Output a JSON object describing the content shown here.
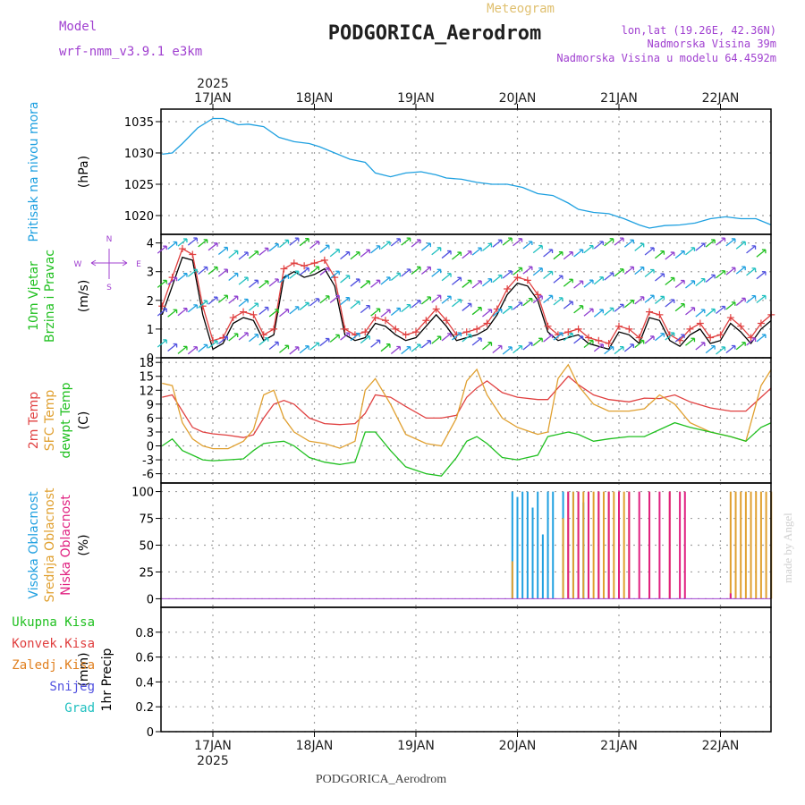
{
  "header": {
    "model_label": "Model",
    "model_name": "wrf-nmm_v3.9.1 e3km",
    "meteogram_label": "Meteogram",
    "station": "PODGORICA_Aerodrom",
    "lonlat": "lon,lat (19.26E, 42.36N)",
    "altitude": "Nadmorska Visina 39m",
    "model_altitude": "Nadmorska Visina u modelu 64.4592m",
    "year": "2025",
    "footer_station": "PODGORICA_Aerodrom",
    "credit": "made by Angel"
  },
  "colors": {
    "pressure": "#1ea0e0",
    "wind_speed": "#000000",
    "gust": "#e04040",
    "t2m": "#e04040",
    "tsfc": "#e0a030",
    "dewpt": "#20c020",
    "cloud_high": "#20a0e0",
    "cloud_mid": "#e0a030",
    "cloud_low": "#e02080",
    "axis_label_purple": "#a040d0"
  },
  "chart_data": {
    "type": "line",
    "dates": [
      "17JAN",
      "18JAN",
      "19JAN",
      "20JAN",
      "21JAN",
      "22JAN"
    ],
    "panels": [
      {
        "id": "pressure",
        "label_lines": [
          "Pritisak na nivou mora"
        ],
        "unit": "(hPa)",
        "ylim": [
          1017,
          1037
        ],
        "yticks": [
          1020,
          1025,
          1030,
          1035
        ],
        "series": [
          {
            "name": "Pritisak na nivou mora",
            "color": "#1ea0e0",
            "x": [
              -0.5,
              -0.4,
              -0.3,
              -0.15,
              0,
              0.1,
              0.25,
              0.35,
              0.5,
              0.65,
              0.8,
              0.95,
              1.05,
              1.2,
              1.35,
              1.5,
              1.6,
              1.75,
              1.9,
              2.05,
              2.2,
              2.3,
              2.45,
              2.6,
              2.75,
              2.9,
              3.05,
              3.2,
              3.35,
              3.5,
              3.6,
              3.75,
              3.9,
              4.05,
              4.2,
              4.3,
              4.45,
              4.6,
              4.75,
              4.9,
              5.05,
              5.2,
              5.35,
              5.5
            ],
            "y": [
              1029.8,
              1030,
              1031.5,
              1034,
              1035.5,
              1035.5,
              1034.5,
              1034.6,
              1034.2,
              1032.5,
              1031.8,
              1031.5,
              1031,
              1030,
              1029,
              1028.5,
              1026.8,
              1026.2,
              1026.8,
              1027,
              1026.5,
              1026,
              1025.8,
              1025.3,
              1025,
              1025,
              1024.5,
              1023.5,
              1023.2,
              1022,
              1021,
              1020.5,
              1020.3,
              1019.5,
              1018.5,
              1018,
              1018.4,
              1018.5,
              1018.8,
              1019.5,
              1019.8,
              1019.5,
              1019.5,
              1018.5
            ]
          }
        ]
      },
      {
        "id": "wind",
        "label_lines": [
          "10m Vjetar",
          "Brzina i Pravac"
        ],
        "unit": "(m/s)",
        "ylim": [
          0,
          4.3
        ],
        "yticks": [
          0,
          1,
          2,
          3,
          4
        ],
        "series": [
          {
            "name": "Brzina",
            "color": "#000000",
            "x": [
              -0.5,
              -0.4,
              -0.3,
              -0.2,
              -0.1,
              0,
              0.1,
              0.2,
              0.3,
              0.4,
              0.5,
              0.6,
              0.7,
              0.8,
              0.9,
              1,
              1.1,
              1.2,
              1.3,
              1.4,
              1.5,
              1.6,
              1.7,
              1.8,
              1.9,
              2,
              2.1,
              2.2,
              2.3,
              2.4,
              2.5,
              2.6,
              2.7,
              2.8,
              2.9,
              3,
              3.1,
              3.2,
              3.3,
              3.4,
              3.5,
              3.6,
              3.7,
              3.8,
              3.9,
              4,
              4.1,
              4.2,
              4.3,
              4.4,
              4.5,
              4.6,
              4.7,
              4.8,
              4.9,
              5,
              5.1,
              5.2,
              5.3,
              5.4,
              5.5
            ],
            "y": [
              1.5,
              2.5,
              3.5,
              3.4,
              1.5,
              0.3,
              0.5,
              1.2,
              1.4,
              1.3,
              0.6,
              0.8,
              2.8,
              3,
              2.8,
              2.9,
              3.1,
              2.5,
              0.8,
              0.6,
              0.7,
              1.2,
              1.1,
              0.8,
              0.6,
              0.7,
              1.1,
              1.5,
              1.1,
              0.6,
              0.7,
              0.8,
              1,
              1.5,
              2.2,
              2.6,
              2.5,
              2.0,
              0.9,
              0.6,
              0.7,
              0.8,
              0.5,
              0.4,
              0.3,
              0.9,
              0.8,
              0.5,
              1.4,
              1.3,
              0.6,
              0.4,
              0.8,
              1.0,
              0.5,
              0.6,
              1.2,
              0.9,
              0.5,
              1.0,
              1.3
            ]
          },
          {
            "name": "Udar",
            "color": "#e04040",
            "x": [
              -0.5,
              -0.4,
              -0.3,
              -0.2,
              -0.1,
              0,
              0.1,
              0.2,
              0.3,
              0.4,
              0.5,
              0.6,
              0.7,
              0.8,
              0.9,
              1,
              1.1,
              1.2,
              1.3,
              1.4,
              1.5,
              1.6,
              1.7,
              1.8,
              1.9,
              2,
              2.1,
              2.2,
              2.3,
              2.4,
              2.5,
              2.6,
              2.7,
              2.8,
              2.9,
              3,
              3.1,
              3.2,
              3.3,
              3.4,
              3.5,
              3.6,
              3.7,
              3.8,
              3.9,
              4,
              4.1,
              4.2,
              4.3,
              4.4,
              4.5,
              4.6,
              4.7,
              4.8,
              4.9,
              5,
              5.1,
              5.2,
              5.3,
              5.4,
              5.5
            ],
            "y": [
              1.8,
              2.8,
              3.8,
              3.6,
              1.8,
              0.6,
              0.7,
              1.4,
              1.6,
              1.5,
              0.8,
              1.0,
              3.1,
              3.3,
              3.2,
              3.3,
              3.4,
              2.8,
              1.0,
              0.8,
              0.9,
              1.4,
              1.3,
              1.0,
              0.8,
              0.9,
              1.3,
              1.7,
              1.3,
              0.8,
              0.9,
              1.0,
              1.2,
              1.7,
              2.4,
              2.8,
              2.7,
              2.2,
              1.1,
              0.8,
              0.9,
              1.0,
              0.7,
              0.6,
              0.5,
              1.1,
              1.0,
              0.7,
              1.6,
              1.5,
              0.8,
              0.6,
              1.0,
              1.2,
              0.7,
              0.8,
              1.4,
              1.1,
              0.7,
              1.2,
              1.5
            ]
          }
        ],
        "legend_glyph": "N\n<-|->\nW         E\nS"
      },
      {
        "id": "temp",
        "label_lines": [
          "2m Temp",
          "SFC Temp",
          "dewpt Temp"
        ],
        "unit": "(C)",
        "ylim": [
          -8,
          19
        ],
        "yticks": [
          -6,
          -3,
          0,
          3,
          6,
          9,
          12,
          15,
          18
        ],
        "series": [
          {
            "name": "2m Temp",
            "color": "#e04040",
            "x": [
              -0.5,
              -0.4,
              -0.3,
              -0.2,
              -0.1,
              0,
              0.15,
              0.3,
              0.4,
              0.5,
              0.6,
              0.7,
              0.8,
              0.95,
              1.1,
              1.25,
              1.4,
              1.5,
              1.6,
              1.75,
              1.9,
              2.1,
              2.25,
              2.4,
              2.5,
              2.6,
              2.7,
              2.85,
              3.0,
              3.2,
              3.3,
              3.4,
              3.5,
              3.6,
              3.75,
              3.9,
              4.1,
              4.25,
              4.4,
              4.55,
              4.7,
              4.9,
              5.1,
              5.25,
              5.4,
              5.5
            ],
            "y": [
              10.5,
              11,
              7.5,
              4,
              3,
              2.6,
              2.3,
              1.8,
              2.4,
              6,
              9,
              9.8,
              9,
              6,
              4.8,
              4.6,
              4.8,
              7,
              11,
              10.5,
              8.5,
              6,
              6,
              6.6,
              10.5,
              12.5,
              14,
              11.5,
              10.5,
              10,
              10,
              12.5,
              15,
              13.2,
              11,
              10,
              9.5,
              10.3,
              10.2,
              11,
              9.5,
              8.2,
              7.5,
              7.5,
              10.5,
              12.5
            ]
          },
          {
            "name": "SFC Temp",
            "color": "#e0a030",
            "x": [
              -0.5,
              -0.4,
              -0.3,
              -0.2,
              -0.1,
              0,
              0.15,
              0.3,
              0.4,
              0.5,
              0.6,
              0.7,
              0.8,
              0.95,
              1.1,
              1.25,
              1.4,
              1.5,
              1.6,
              1.75,
              1.9,
              2.1,
              2.25,
              2.4,
              2.5,
              2.6,
              2.7,
              2.85,
              3.0,
              3.2,
              3.3,
              3.4,
              3.5,
              3.6,
              3.75,
              3.9,
              4.1,
              4.25,
              4.4,
              4.55,
              4.7,
              4.9,
              5.1,
              5.25,
              5.4,
              5.5
            ],
            "y": [
              13.5,
              13,
              5,
              1.5,
              0,
              -0.6,
              -0.6,
              1,
              3.5,
              11,
              12,
              6,
              3,
              1,
              0.5,
              -0.5,
              1,
              12,
              14.5,
              9,
              2.5,
              0.5,
              0,
              6,
              14,
              16.5,
              11,
              6,
              4,
              2.5,
              3,
              14.5,
              17.5,
              13,
              9,
              7.5,
              7.5,
              8,
              11,
              9,
              5,
              3,
              2,
              1,
              13,
              16.5
            ]
          },
          {
            "name": "dewpt Temp",
            "color": "#20c020",
            "x": [
              -0.5,
              -0.4,
              -0.3,
              -0.2,
              -0.1,
              0,
              0.15,
              0.3,
              0.4,
              0.5,
              0.6,
              0.7,
              0.8,
              0.95,
              1.1,
              1.25,
              1.4,
              1.5,
              1.6,
              1.75,
              1.9,
              2.1,
              2.25,
              2.4,
              2.5,
              2.6,
              2.7,
              2.85,
              3.0,
              3.2,
              3.3,
              3.4,
              3.5,
              3.6,
              3.75,
              3.9,
              4.1,
              4.25,
              4.4,
              4.55,
              4.7,
              4.9,
              5.1,
              5.25,
              5.4,
              5.5
            ],
            "y": [
              0,
              1.5,
              -1,
              -2,
              -3,
              -3.2,
              -3,
              -2.8,
              -1,
              0.5,
              0.8,
              1,
              0,
              -2.5,
              -3.5,
              -4,
              -3.5,
              3,
              3,
              -1,
              -4.5,
              -6,
              -6.5,
              -2.5,
              1,
              2,
              0.5,
              -2.5,
              -3,
              -2,
              2,
              2.5,
              3,
              2.5,
              1,
              1.5,
              2,
              2,
              3.5,
              5,
              4,
              3,
              2,
              1,
              4,
              5
            ]
          }
        ]
      },
      {
        "id": "cloud",
        "label_lines": [
          "Visoka Oblacnost",
          "Srednja Oblacnost",
          "Niska Oblacnost"
        ],
        "unit": "(%)",
        "ylim": [
          -8,
          108
        ],
        "yticks": [
          0,
          25,
          50,
          75,
          100
        ],
        "series": [
          {
            "name": "Visoka Oblacnost",
            "color": "#20a0e0",
            "x": [
              2.95,
              3.0,
              3.05,
              3.1,
              3.15,
              3.2,
              3.25,
              3.3,
              3.35,
              3.45,
              3.55,
              3.65,
              3.75,
              3.85,
              4.55,
              4.6,
              4.65
            ],
            "y": [
              100,
              95,
              100,
              100,
              85,
              100,
              60,
              100,
              100,
              100,
              100,
              90,
              0,
              0,
              0,
              0,
              0
            ]
          },
          {
            "name": "Srednja Oblacnost",
            "color": "#e0a030",
            "x": [
              2.95,
              3.45,
              3.5,
              3.55,
              3.6,
              3.65,
              3.7,
              3.75,
              3.8,
              3.85,
              3.9,
              3.95,
              4.0,
              4.05,
              4.1,
              4.3,
              4.5,
              4.75,
              4.8,
              4.85,
              4.9,
              5.1,
              5.15,
              5.2,
              5.25,
              5.3,
              5.35,
              5.4,
              5.45,
              5.5
            ],
            "y": [
              35,
              75,
              100,
              100,
              100,
              100,
              100,
              100,
              100,
              100,
              100,
              100,
              100,
              100,
              100,
              100,
              100,
              0,
              0,
              0,
              0,
              100,
              100,
              100,
              100,
              100,
              100,
              100,
              100,
              100
            ]
          },
          {
            "name": "Niska Oblacnost",
            "color": "#e02080",
            "x": [
              3.5,
              3.6,
              3.7,
              3.8,
              3.9,
              4.0,
              4.1,
              4.2,
              4.3,
              4.4,
              4.5,
              4.6,
              4.65,
              5.05,
              5.1
            ],
            "y": [
              100,
              100,
              100,
              100,
              100,
              100,
              100,
              100,
              100,
              100,
              100,
              100,
              100,
              0,
              5
            ]
          }
        ]
      },
      {
        "id": "precip",
        "label_lines": [
          "1hr Precip"
        ],
        "unit": "(mm)",
        "ylim": [
          0,
          1
        ],
        "yticks": [
          0,
          0.2,
          0.4,
          0.6,
          0.8
        ],
        "legend": [
          "Ukupna Kisa",
          "Konvek.Kisa",
          "Zaledj.Kisa",
          "Snijeg",
          "Grad"
        ],
        "legend_colors": [
          "#20c020",
          "#e04040",
          "#e08020",
          "#5050e0",
          "#20c0c0"
        ],
        "series": []
      }
    ]
  }
}
